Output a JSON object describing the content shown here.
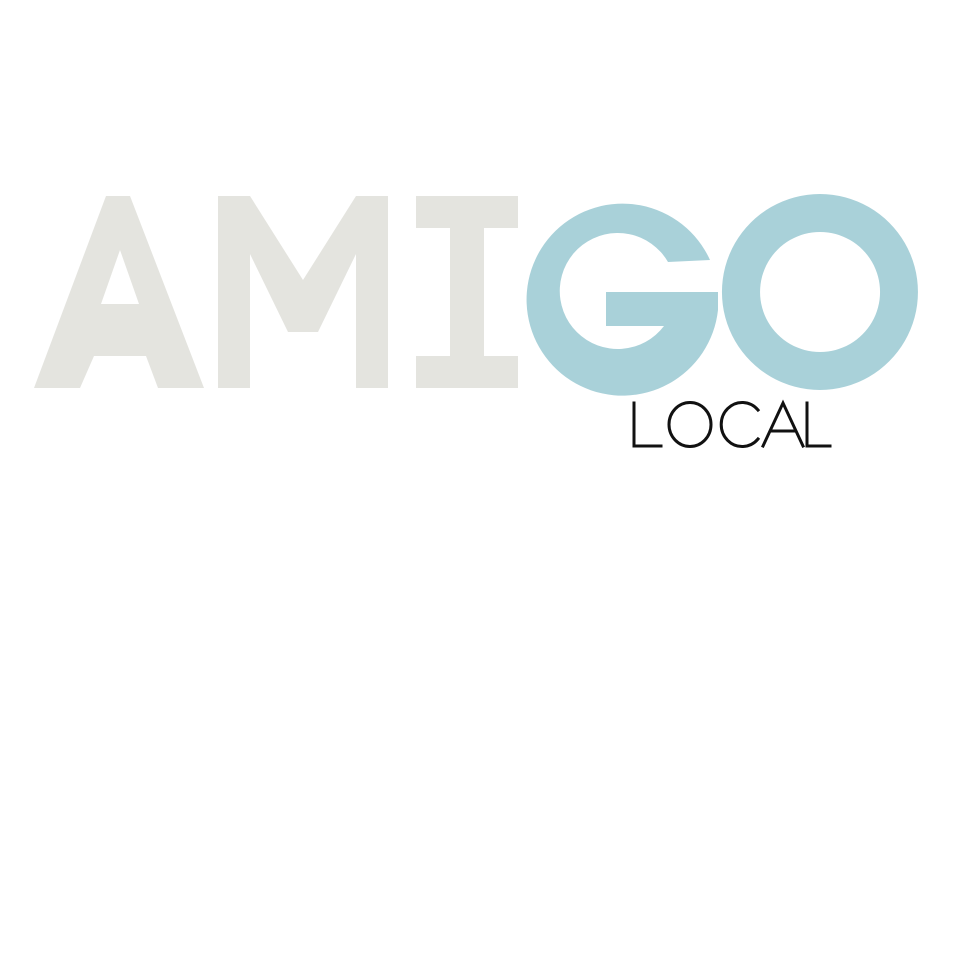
{
  "logo": {
    "word_part_1": "AMI",
    "word_part_2": "GO",
    "tagline": "LOCAL",
    "colors": {
      "part_1": "#e4e4df",
      "part_2": "#a9d1d9",
      "tagline": "#111111",
      "background": "#ffffff"
    }
  }
}
